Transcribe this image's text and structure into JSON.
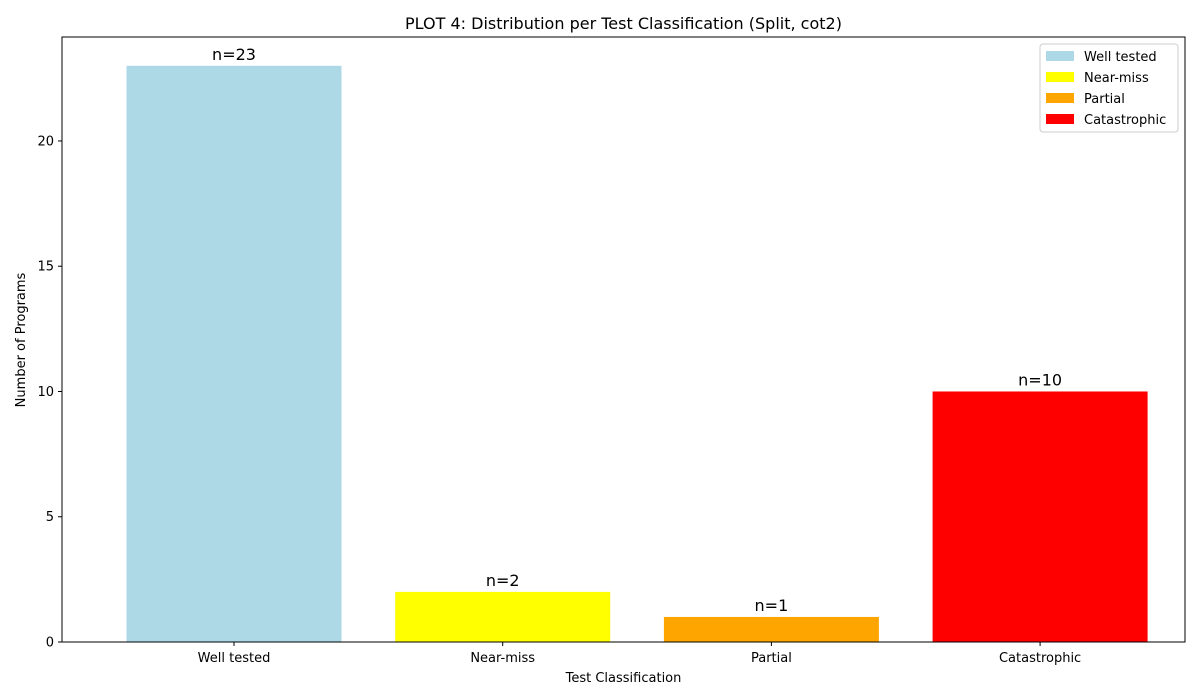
{
  "chart_data": {
    "type": "bar",
    "title": "PLOT 4: Distribution per Test Classification (Split, cot2)",
    "xlabel": "Test Classification",
    "ylabel": "Number of Programs",
    "categories": [
      "Well tested",
      "Near-miss",
      "Partial",
      "Catastrophic"
    ],
    "values": [
      23,
      2,
      1,
      10
    ],
    "data_labels": [
      "n=23",
      "n=2",
      "n=1",
      "n=10"
    ],
    "colors": [
      "#add8e6",
      "#ffff00",
      "#ffa500",
      "#ff0000"
    ],
    "ylim": [
      0,
      24.15
    ],
    "yticks": [
      0,
      5,
      10,
      15,
      20
    ],
    "grid": false,
    "legend": {
      "placement": "top-right",
      "entries": [
        "Well tested",
        "Near-miss",
        "Partial",
        "Catastrophic"
      ]
    }
  }
}
